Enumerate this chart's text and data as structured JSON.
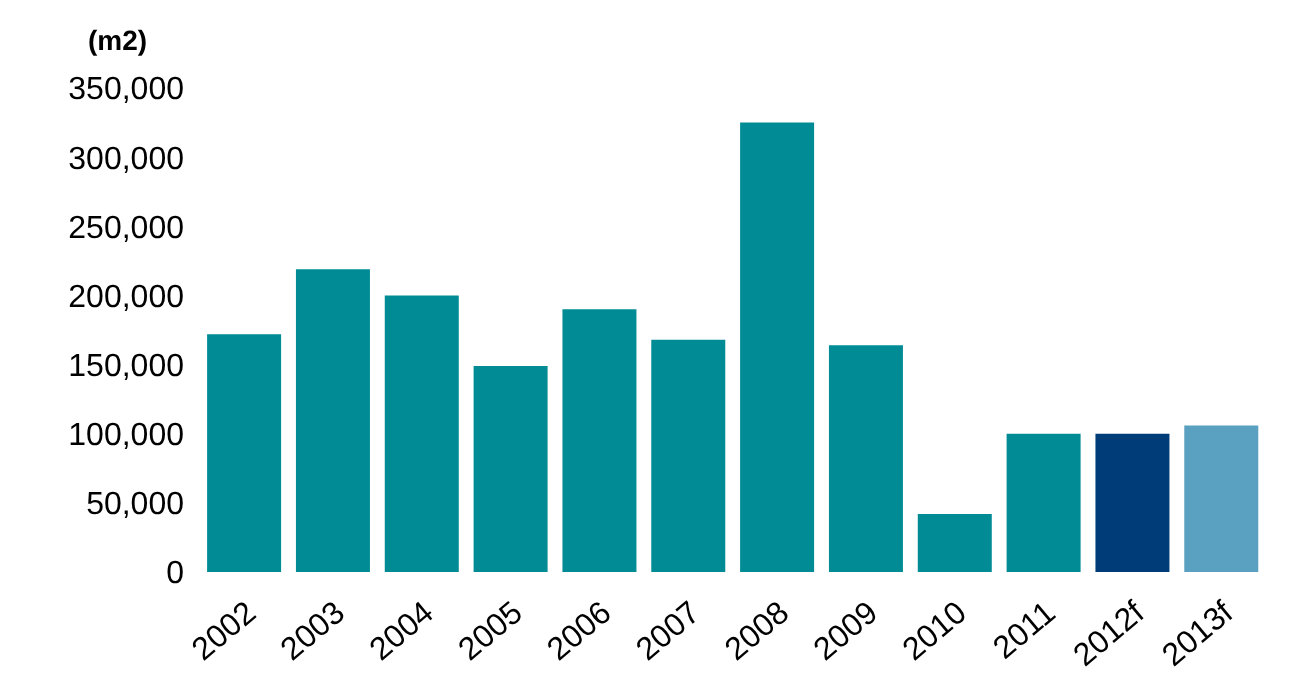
{
  "chart_data": {
    "type": "bar",
    "ylabel": "(m2)",
    "categories": [
      "2002",
      "2003",
      "2004",
      "2005",
      "2006",
      "2007",
      "2008",
      "2009",
      "2010",
      "2011",
      "2012f",
      "2013f"
    ],
    "values": [
      172000,
      219000,
      200000,
      149000,
      190000,
      168000,
      325000,
      164000,
      42000,
      100000,
      100000,
      106000
    ],
    "colors": [
      "#008b95",
      "#008b95",
      "#008b95",
      "#008b95",
      "#008b95",
      "#008b95",
      "#008b95",
      "#008b95",
      "#008b95",
      "#008b95",
      "#003d78",
      "#5aa0c0"
    ],
    "ylim": [
      0,
      350000
    ],
    "yticks": [
      0,
      {
        "value": 50000,
        "label": "50,000"
      },
      {
        "value": 100000,
        "label": "100,000"
      },
      {
        "value": 150000,
        "label": "150,000"
      },
      {
        "value": 200000,
        "label": "200,000"
      },
      {
        "value": 250000,
        "label": "250,000"
      },
      {
        "value": 300000,
        "label": "300,000"
      },
      {
        "value": 350000,
        "label": "350,000"
      }
    ],
    "grid": false,
    "legend": false
  }
}
